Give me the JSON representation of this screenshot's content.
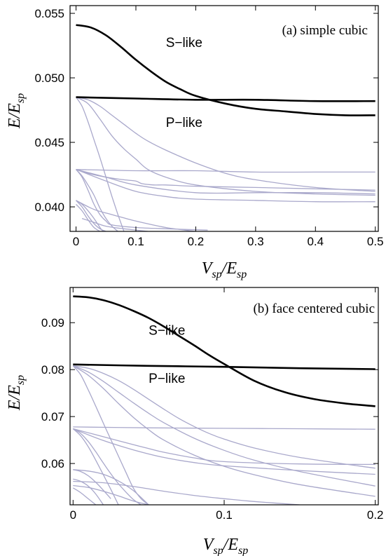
{
  "chart_data": [
    {
      "type": "line",
      "title": "(a) simple cubic",
      "xlabel": {
        "main": "V",
        "sub": "sp",
        "slash": "/",
        "main2": "E",
        "sub2": "sp"
      },
      "ylabel": {
        "main": "E",
        "slash": "/",
        "main2": "E",
        "sub2": "sp"
      },
      "xlim": [
        -0.01,
        0.505
      ],
      "ylim": [
        0.0381,
        0.0556
      ],
      "xticks": [
        0,
        0.1,
        0.2,
        0.3,
        0.4,
        0.5
      ],
      "xtick_labels": [
        "0",
        "0.1",
        "0.2",
        "0.3",
        "0.4",
        "0.5"
      ],
      "yticks": [
        0.04,
        0.045,
        0.05,
        0.055
      ],
      "ytick_labels": [
        "0.040",
        "0.045",
        "0.050",
        "0.055"
      ],
      "annotations": [
        {
          "text": "S−like",
          "x": 0.15,
          "y": 0.0524
        },
        {
          "text": "P−like",
          "x": 0.15,
          "y": 0.0462
        }
      ],
      "series": [
        {
          "role": "main",
          "x": [
            0,
            0.025,
            0.05,
            0.075,
            0.1,
            0.125,
            0.15,
            0.175,
            0.2,
            0.25,
            0.3,
            0.35,
            0.4,
            0.45,
            0.5
          ],
          "y": [
            0.0541,
            0.0539,
            0.0533,
            0.0524,
            0.0514,
            0.0505,
            0.0497,
            0.0491,
            0.0486,
            0.048,
            0.0476,
            0.0474,
            0.0472,
            0.0471,
            0.0471
          ]
        },
        {
          "role": "main",
          "x": [
            0,
            0.1,
            0.2,
            0.3,
            0.4,
            0.5
          ],
          "y": [
            0.0485,
            0.0484,
            0.0483,
            0.0483,
            0.0482,
            0.0482
          ]
        },
        {
          "role": "background",
          "x": [
            0,
            0.02,
            0.04,
            0.06,
            0.08,
            0.1,
            0.12,
            0.15,
            0.2,
            0.25,
            0.3,
            0.4,
            0.5
          ],
          "y": [
            0.0485,
            0.0483,
            0.0478,
            0.0471,
            0.0464,
            0.0457,
            0.0451,
            0.0444,
            0.0434,
            0.0426,
            0.0421,
            0.0415,
            0.0412
          ]
        },
        {
          "role": "background",
          "x": [
            0,
            0.02,
            0.04,
            0.06,
            0.08,
            0.1,
            0.12,
            0.15,
            0.2,
            0.3,
            0.4,
            0.5
          ],
          "y": [
            0.0485,
            0.048,
            0.0468,
            0.0455,
            0.0445,
            0.0437,
            0.0429,
            0.0423,
            0.0417,
            0.0412,
            0.041,
            0.0409
          ]
        },
        {
          "role": "background",
          "x": [
            0,
            0.01,
            0.02,
            0.03,
            0.04,
            0.05,
            0.06,
            0.07,
            0.08
          ],
          "y": [
            0.0485,
            0.0478,
            0.0466,
            0.0452,
            0.0438,
            0.0423,
            0.0408,
            0.0394,
            0.0381
          ]
        },
        {
          "role": "background",
          "x": [
            0,
            0.1,
            0.2,
            0.3,
            0.4,
            0.5
          ],
          "y": [
            0.0429,
            0.0428,
            0.0428,
            0.0427,
            0.0427,
            0.0427
          ]
        },
        {
          "role": "background",
          "x": [
            0,
            0.02,
            0.05,
            0.08,
            0.1,
            0.11,
            0.13,
            0.15,
            0.2,
            0.3,
            0.4,
            0.5
          ],
          "y": [
            0.0429,
            0.0426,
            0.0423,
            0.0421,
            0.042,
            0.0418,
            0.0417,
            0.0417,
            0.0416,
            0.0415,
            0.0414,
            0.0413
          ]
        },
        {
          "role": "background",
          "x": [
            0,
            0.05,
            0.1,
            0.2,
            0.3,
            0.4,
            0.5
          ],
          "y": [
            0.0429,
            0.0423,
            0.0417,
            0.0411,
            0.0411,
            0.0411,
            0.041
          ]
        },
        {
          "role": "background",
          "x": [
            0,
            0.05,
            0.1,
            0.15,
            0.2,
            0.3,
            0.4,
            0.5
          ],
          "y": [
            0.0429,
            0.042,
            0.0412,
            0.0408,
            0.0406,
            0.0405,
            0.0404,
            0.0404
          ]
        },
        {
          "role": "background",
          "x": [
            0,
            0.01,
            0.02,
            0.03,
            0.04,
            0.05,
            0.06,
            0.07
          ],
          "y": [
            0.0429,
            0.0424,
            0.0417,
            0.0409,
            0.0399,
            0.0391,
            0.0385,
            0.0381
          ]
        },
        {
          "role": "background",
          "x": [
            0,
            0.01,
            0.02,
            0.03,
            0.04,
            0.05,
            0.06,
            0.1,
            0.15,
            0.22
          ],
          "y": [
            0.0429,
            0.0423,
            0.0413,
            0.0402,
            0.0394,
            0.0389,
            0.0386,
            0.0384,
            0.0383,
            0.0382
          ]
        },
        {
          "role": "background",
          "x": [
            0,
            0.01,
            0.02,
            0.03,
            0.04,
            0.045
          ],
          "y": [
            0.0405,
            0.0402,
            0.0397,
            0.0391,
            0.0384,
            0.0381
          ]
        },
        {
          "role": "background",
          "x": [
            0,
            0.01,
            0.02,
            0.03,
            0.04,
            0.05
          ],
          "y": [
            0.0405,
            0.04,
            0.0393,
            0.0387,
            0.0383,
            0.0381
          ]
        },
        {
          "role": "background",
          "x": [
            0,
            0.03,
            0.06,
            0.1,
            0.15,
            0.2
          ],
          "y": [
            0.0405,
            0.0398,
            0.0394,
            0.0389,
            0.0384,
            0.0381
          ]
        },
        {
          "role": "background",
          "x": [
            0,
            0.01,
            0.02,
            0.03,
            0.04
          ],
          "y": [
            0.0402,
            0.0397,
            0.039,
            0.0384,
            0.0381
          ]
        },
        {
          "role": "background",
          "x": [
            0.01,
            0.03,
            0.05,
            0.08,
            0.1,
            0.12
          ],
          "y": [
            0.0391,
            0.0388,
            0.0385,
            0.0383,
            0.0382,
            0.0381
          ]
        }
      ]
    },
    {
      "type": "line",
      "title": "(b) face centered cubic",
      "xlabel": {
        "main": "V",
        "sub": "sp",
        "slash": "/",
        "main2": "E",
        "sub2": "sp"
      },
      "ylabel": {
        "main": "E",
        "slash": "/",
        "main2": "E",
        "sub2": "sp"
      },
      "xlim": [
        -0.002,
        0.202
      ],
      "ylim": [
        0.0512,
        0.0975
      ],
      "xticks": [
        0,
        0.1,
        0.2
      ],
      "xtick_labels": [
        "0",
        "0.1",
        "0.2"
      ],
      "yticks": [
        0.06,
        0.07,
        0.08,
        0.09
      ],
      "ytick_labels": [
        "0.06",
        "0.07",
        "0.08",
        "0.09"
      ],
      "annotations": [
        {
          "text": "S−like",
          "x": 0.05,
          "y": 0.0874
        },
        {
          "text": "P−like",
          "x": 0.05,
          "y": 0.0772
        }
      ],
      "series": [
        {
          "role": "main",
          "x": [
            0,
            0.01,
            0.02,
            0.03,
            0.04,
            0.05,
            0.06,
            0.07,
            0.08,
            0.09,
            0.1,
            0.12,
            0.14,
            0.16,
            0.18,
            0.2
          ],
          "y": [
            0.0956,
            0.0954,
            0.0948,
            0.0938,
            0.0925,
            0.091,
            0.0892,
            0.0872,
            0.0852,
            0.0831,
            0.0812,
            0.0776,
            0.0752,
            0.0737,
            0.0728,
            0.0722
          ]
        },
        {
          "role": "main",
          "x": [
            0,
            0.05,
            0.1,
            0.15,
            0.2
          ],
          "y": [
            0.0811,
            0.0808,
            0.0806,
            0.0803,
            0.0801
          ]
        },
        {
          "role": "background",
          "x": [
            0,
            0.01,
            0.02,
            0.03,
            0.04,
            0.05,
            0.06,
            0.07,
            0.08,
            0.09,
            0.1,
            0.12,
            0.15,
            0.2
          ],
          "y": [
            0.0808,
            0.0803,
            0.0792,
            0.0777,
            0.0758,
            0.0737,
            0.0716,
            0.0696,
            0.0679,
            0.0664,
            0.0652,
            0.0633,
            0.0613,
            0.059
          ]
        },
        {
          "role": "background",
          "x": [
            0,
            0.01,
            0.02,
            0.03,
            0.04,
            0.05,
            0.06,
            0.08,
            0.1,
            0.12,
            0.15,
            0.2
          ],
          "y": [
            0.0808,
            0.0795,
            0.0775,
            0.0752,
            0.0729,
            0.0707,
            0.0687,
            0.0654,
            0.0628,
            0.0607,
            0.0583,
            0.0552
          ]
        },
        {
          "role": "background",
          "x": [
            0,
            0.01,
            0.02,
            0.03,
            0.04,
            0.05,
            0.06,
            0.08,
            0.1,
            0.12,
            0.15,
            0.2
          ],
          "y": [
            0.0808,
            0.0788,
            0.076,
            0.0728,
            0.0698,
            0.0672,
            0.065,
            0.0618,
            0.0594,
            0.0576,
            0.0555,
            0.053
          ]
        },
        {
          "role": "background",
          "x": [
            0,
            0.005,
            0.01,
            0.015,
            0.02,
            0.025,
            0.03,
            0.035,
            0.04,
            0.045,
            0.05
          ],
          "y": [
            0.0808,
            0.0789,
            0.0757,
            0.0722,
            0.0686,
            0.0651,
            0.0616,
            0.0581,
            0.0547,
            0.0525,
            0.0512
          ]
        },
        {
          "role": "background",
          "x": [
            0,
            0.05,
            0.1,
            0.15,
            0.2
          ],
          "y": [
            0.0678,
            0.0676,
            0.0675,
            0.0674,
            0.0673
          ]
        },
        {
          "role": "background",
          "x": [
            0,
            0.02,
            0.04,
            0.05,
            0.06,
            0.08,
            0.1,
            0.15,
            0.2
          ],
          "y": [
            0.0674,
            0.0657,
            0.064,
            0.0632,
            0.0624,
            0.0612,
            0.0604,
            0.0599,
            0.0598
          ]
        },
        {
          "role": "background",
          "x": [
            0,
            0.02,
            0.04,
            0.06,
            0.08,
            0.1,
            0.15,
            0.2
          ],
          "y": [
            0.0674,
            0.0649,
            0.0629,
            0.0613,
            0.0602,
            0.0595,
            0.0585,
            0.0577
          ]
        },
        {
          "role": "background",
          "x": [
            0,
            0.005,
            0.01,
            0.015,
            0.02,
            0.025,
            0.03,
            0.035,
            0.04,
            0.045
          ],
          "y": [
            0.0674,
            0.0664,
            0.0647,
            0.0625,
            0.0601,
            0.0578,
            0.0557,
            0.0539,
            0.0523,
            0.0512
          ]
        },
        {
          "role": "background",
          "x": [
            0,
            0.005,
            0.01,
            0.015,
            0.02,
            0.025,
            0.03
          ],
          "y": [
            0.0674,
            0.0659,
            0.0636,
            0.0607,
            0.0576,
            0.0545,
            0.0512
          ]
        },
        {
          "role": "background",
          "x": [
            0,
            0.005,
            0.01,
            0.015,
            0.02,
            0.025
          ],
          "y": [
            0.0587,
            0.0583,
            0.0574,
            0.056,
            0.0543,
            0.0525
          ]
        },
        {
          "role": "background",
          "x": [
            0,
            0.01,
            0.02,
            0.03,
            0.04,
            0.05
          ],
          "y": [
            0.0587,
            0.0584,
            0.0577,
            0.0563,
            0.0542,
            0.0512
          ]
        },
        {
          "role": "background",
          "x": [
            0,
            0.005,
            0.01,
            0.015,
            0.02
          ],
          "y": [
            0.0567,
            0.0562,
            0.0552,
            0.0535,
            0.0512
          ]
        },
        {
          "role": "background",
          "x": [
            0,
            0.02,
            0.04,
            0.06,
            0.08,
            0.1,
            0.12,
            0.15
          ],
          "y": [
            0.0562,
            0.0559,
            0.0551,
            0.0541,
            0.0532,
            0.0525,
            0.0519,
            0.0512
          ]
        },
        {
          "role": "background",
          "x": [
            0,
            0.01,
            0.02,
            0.03,
            0.04,
            0.05
          ],
          "y": [
            0.0553,
            0.0549,
            0.0541,
            0.0531,
            0.052,
            0.0512
          ]
        },
        {
          "role": "background",
          "x": [
            0,
            0.005,
            0.01,
            0.015
          ],
          "y": [
            0.0548,
            0.0538,
            0.0525,
            0.0512
          ]
        }
      ]
    }
  ]
}
